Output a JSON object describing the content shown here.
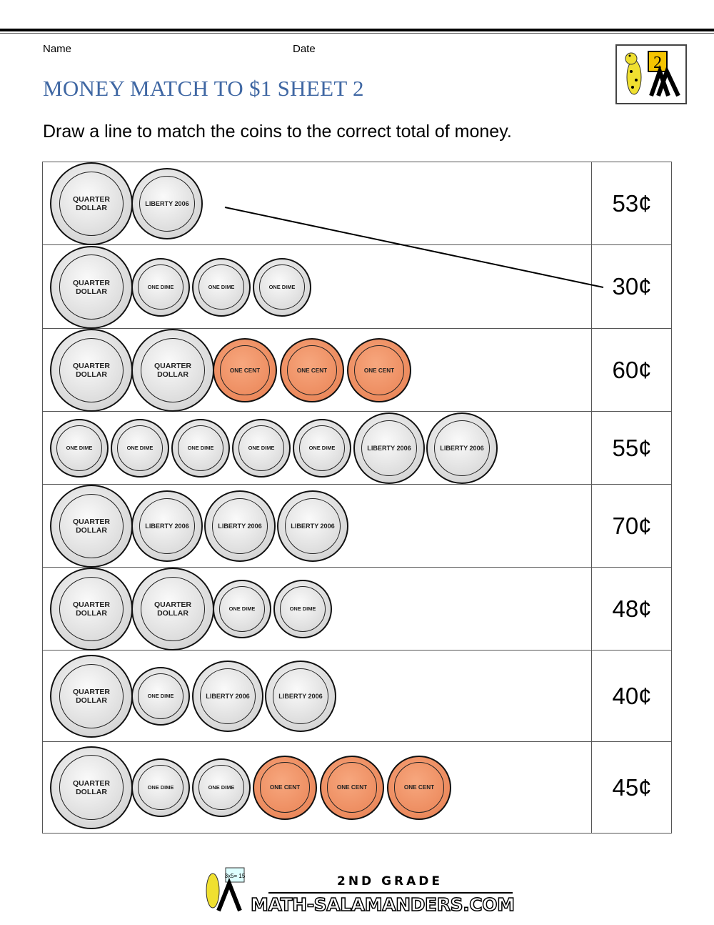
{
  "header": {
    "name_label": "Name",
    "date_label": "Date",
    "title": "MONEY MATCH TO $1 SHEET 2",
    "instructions": "Draw a line to match the coins to the correct total of money."
  },
  "logo": {
    "grade": "2",
    "icon": "salamander-grade-2-logo"
  },
  "coin_types": {
    "quarter": {
      "label": "QUARTER DOLLAR",
      "color": "#d8d8d8"
    },
    "nickel": {
      "label": "LIBERTY 2006",
      "color": "#d8d8d8"
    },
    "dime": {
      "label": "ONE DIME",
      "color": "#d8d8d8"
    },
    "penny": {
      "label": "ONE CENT",
      "color": "#ec8a5d"
    }
  },
  "rows": [
    {
      "coins": [
        "quarter",
        "nickel"
      ],
      "amount": "53¢"
    },
    {
      "coins": [
        "quarter",
        "dime",
        "dime",
        "dime"
      ],
      "amount": "30¢"
    },
    {
      "coins": [
        "quarter",
        "quarter",
        "penny",
        "penny",
        "penny"
      ],
      "amount": "60¢"
    },
    {
      "coins": [
        "dime",
        "dime",
        "dime",
        "dime",
        "dime",
        "nickel",
        "nickel"
      ],
      "amount": "55¢"
    },
    {
      "coins": [
        "quarter",
        "nickel",
        "nickel",
        "nickel"
      ],
      "amount": "70¢"
    },
    {
      "coins": [
        "quarter",
        "quarter",
        "dime",
        "dime"
      ],
      "amount": "48¢"
    },
    {
      "coins": [
        "quarter",
        "dime",
        "nickel",
        "nickel"
      ],
      "amount": "40¢"
    },
    {
      "coins": [
        "quarter",
        "dime",
        "dime",
        "penny",
        "penny",
        "penny"
      ],
      "amount": "45¢"
    }
  ],
  "example_match": {
    "from_row": 1,
    "to_row": 2
  },
  "footer": {
    "grade_text": "2ND GRADE",
    "site": "MATH-SALAMANDERS.COM",
    "board_text": "3x5= 15"
  }
}
